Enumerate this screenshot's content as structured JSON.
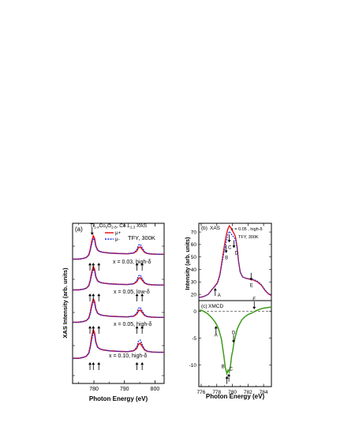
{
  "colors": {
    "mu_plus": "#e8141e",
    "mu_minus": "#1a2ee0",
    "xmcd": "#3f9a1a",
    "axis": "#000000"
  },
  "chart_data": [
    {
      "id": "a",
      "type": "line",
      "panel_label": "(a)",
      "title": "Ti1-xCoxO2-δ, Co L2,3 XAS",
      "condition": "TFY, 300K",
      "xlabel": "Photon Energy (eV)",
      "ylabel": "XAS Intensity (arb. units)",
      "xlim": [
        773,
        803
      ],
      "xticks": [
        780,
        790,
        800
      ],
      "legend": [
        {
          "name": "μ+",
          "style": "solid"
        },
        {
          "name": "μ-",
          "style": "dotted"
        }
      ],
      "spectra": [
        {
          "label": "x = 0.03,  high-δ",
          "offset": 3,
          "arrows_x": [
            778.7,
            779.8,
            781.6,
            794.1,
            795.8
          ]
        },
        {
          "label": "x = 0.05,  low-δ",
          "offset": 2,
          "arrows_x": [
            778.7,
            779.8,
            781.6,
            794.1,
            795.8
          ]
        },
        {
          "label": "x = 0.05,  high-δ",
          "offset": 1,
          "arrows_x": [
            778.7,
            779.8,
            781.6,
            794.1,
            795.8
          ]
        },
        {
          "label": "x = 0.10,  high-δ",
          "offset": 0,
          "arrows_x": [
            778.7,
            779.8,
            781.6,
            794.1,
            795.8
          ]
        }
      ],
      "series_shape": {
        "x": [
          773,
          775,
          776.5,
          777.5,
          778.3,
          778.8,
          779.3,
          779.8,
          780.2,
          780.6,
          781.2,
          782,
          783,
          785,
          788,
          791,
          793,
          794,
          794.6,
          795.2,
          795.8,
          796.6,
          797.5,
          799,
          801,
          803
        ],
        "mu_plus": [
          0.05,
          0.05,
          0.08,
          0.12,
          0.22,
          0.45,
          0.78,
          1.0,
          0.9,
          0.6,
          0.42,
          0.36,
          0.33,
          0.3,
          0.28,
          0.27,
          0.3,
          0.38,
          0.52,
          0.55,
          0.45,
          0.33,
          0.28,
          0.26,
          0.25,
          0.25
        ],
        "mu_minus": [
          0.05,
          0.05,
          0.08,
          0.12,
          0.21,
          0.4,
          0.68,
          0.9,
          0.84,
          0.58,
          0.41,
          0.36,
          0.33,
          0.3,
          0.28,
          0.27,
          0.3,
          0.42,
          0.62,
          0.66,
          0.52,
          0.35,
          0.29,
          0.26,
          0.25,
          0.25
        ]
      }
    },
    {
      "id": "b",
      "type": "line",
      "panel_label": "(b)",
      "tag": "XAS",
      "sample": "x = 0.05 , high-δ",
      "condition": "TFY, 300K",
      "xlim": [
        775.7,
        785
      ],
      "ylim": [
        15,
        77
      ],
      "yticks": [
        20,
        30,
        40,
        50,
        60,
        70
      ],
      "ylabel": "Intensity (arb. units)",
      "x": [
        775.7,
        776.3,
        776.9,
        777.4,
        777.8,
        778.1,
        778.4,
        778.7,
        779.0,
        779.2,
        779.4,
        779.6,
        779.8,
        780.0,
        780.2,
        780.4,
        780.6,
        780.8,
        781.0,
        781.3,
        781.7,
        782.2,
        782.7,
        783.2,
        783.7,
        784.2,
        784.6,
        785.0
      ],
      "series": [
        {
          "name": "μ+",
          "values": [
            17.5,
            18.2,
            20,
            24,
            27,
            29.5,
            36,
            48,
            60,
            67,
            72,
            75,
            73.5,
            71,
            69,
            66,
            58,
            46,
            38,
            34,
            33,
            32.2,
            31.5,
            30,
            27.5,
            23,
            20.5,
            19
          ]
        },
        {
          "name": "μ-",
          "values": [
            17.5,
            18.2,
            20,
            24,
            26.6,
            29,
            35,
            46,
            56,
            62,
            67.5,
            70.5,
            69,
            67,
            66,
            64,
            57,
            46,
            38,
            34,
            33,
            32.4,
            32,
            30.6,
            28,
            23.4,
            20.8,
            19.2
          ]
        }
      ],
      "annotations": [
        {
          "text": "A",
          "x": 777.8,
          "dir": "up"
        },
        {
          "text": "B",
          "x": 779.2,
          "dir": "down"
        },
        {
          "text": "C",
          "x": 779.6,
          "dir": "down"
        },
        {
          "text": "D",
          "x": 780.2,
          "dir": "down"
        },
        {
          "text": "E",
          "x": 782.4,
          "dir": "down"
        }
      ]
    },
    {
      "id": "c",
      "type": "line",
      "panel_label": "(c)",
      "tag": "XMCD",
      "xlabel": "Photon Energy (eV)",
      "xlim": [
        775.7,
        785
      ],
      "xticks": [
        776,
        778,
        780,
        782,
        784
      ],
      "ylim": [
        -14,
        2
      ],
      "yticks": [
        0,
        -5,
        -10
      ],
      "baseline": 0,
      "x": [
        775.7,
        776.2,
        776.8,
        777.3,
        777.8,
        778.2,
        778.6,
        778.9,
        779.1,
        779.3,
        779.45,
        779.6,
        779.75,
        779.9,
        780.05,
        780.2,
        780.4,
        780.6,
        780.9,
        781.2,
        781.6,
        782.0,
        782.5,
        783.0,
        783.5,
        784.0,
        784.5,
        785.0
      ],
      "series": [
        {
          "name": "XMCD",
          "values": [
            0.3,
            0.1,
            -0.4,
            -1.1,
            -2.0,
            -3.1,
            -5.2,
            -8.2,
            -10.5,
            -11.6,
            -10.9,
            -11.3,
            -10.2,
            -8.3,
            -7.3,
            -5.8,
            -4.6,
            -3.4,
            -2.4,
            -1.6,
            -1.0,
            -0.6,
            -0.3,
            0.1,
            0.4,
            0.6,
            0.7,
            0.8
          ]
        }
      ],
      "annotations": [
        {
          "text": "A",
          "x": 777.9,
          "dir": "up"
        },
        {
          "text": "B",
          "x": 779.3,
          "dir": "up"
        },
        {
          "text": "C",
          "x": 779.55,
          "dir": "up"
        },
        {
          "text": "D",
          "x": 780.15,
          "dir": "down"
        },
        {
          "text": "E",
          "x": 782.8,
          "dir": "down"
        }
      ]
    }
  ]
}
